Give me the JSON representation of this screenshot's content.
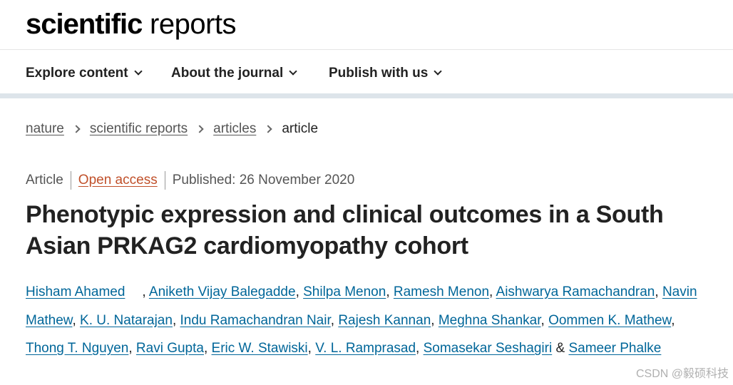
{
  "masthead": {
    "logo_bold": "scientific",
    "logo_light": " reports"
  },
  "nav": {
    "items": [
      {
        "label": "Explore content"
      },
      {
        "label": "About the journal"
      },
      {
        "label": "Publish with us"
      }
    ]
  },
  "breadcrumb": {
    "items": [
      "nature",
      "scientific reports",
      "articles"
    ],
    "current": "article"
  },
  "meta": {
    "type": "Article",
    "access": "Open access",
    "published": "Published: 26 November 2020"
  },
  "title": "Phenotypic expression and clinical outcomes in a South Asian PRKAG2 cardiomyopathy cohort",
  "authors": [
    "Hisham Ahamed",
    "Aniketh Vijay Balegadde",
    "Shilpa Menon",
    "Ramesh Menon",
    "Aishwarya Ramachandran",
    "Navin Mathew",
    "K. U. Natarajan",
    "Indu Ramachandran Nair",
    "Rajesh Kannan",
    "Meghna Shankar",
    "Oommen K. Mathew",
    "Thong T. Nguyen",
    "Ravi Gupta",
    "Eric W. Stawiski",
    "V. L. Ramprasad",
    "Somasekar Seshagiri",
    "Sameer Phalke"
  ],
  "authors_final_joiner": "&",
  "watermark": "CSDN @毅硕科技"
}
